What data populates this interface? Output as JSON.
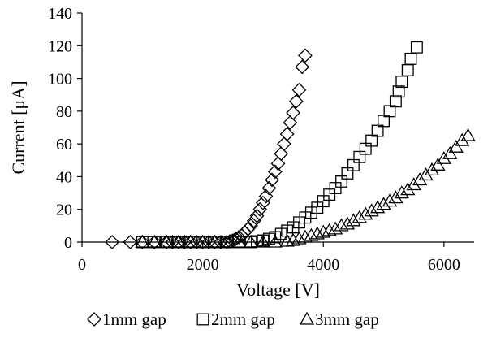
{
  "chart_data": {
    "type": "scatter",
    "xlabel": "Voltage [V]",
    "ylabel": "Current [μA]",
    "xlim": [
      0,
      6500
    ],
    "ylim": [
      0,
      140
    ],
    "xticks": [
      0,
      2000,
      4000,
      6000
    ],
    "yticks": [
      0,
      20,
      40,
      60,
      80,
      100,
      120,
      140
    ],
    "grid": false,
    "legend_position": "bottom",
    "series": [
      {
        "name": "1mm gap",
        "marker": "diamond",
        "points": [
          [
            500,
            0
          ],
          [
            800,
            0
          ],
          [
            1000,
            0
          ],
          [
            1200,
            0
          ],
          [
            1400,
            0
          ],
          [
            1500,
            0
          ],
          [
            1600,
            0
          ],
          [
            1700,
            0
          ],
          [
            1800,
            0
          ],
          [
            1900,
            0
          ],
          [
            2000,
            0
          ],
          [
            2100,
            0
          ],
          [
            2200,
            0
          ],
          [
            2300,
            0
          ],
          [
            2400,
            0
          ],
          [
            2450,
            0.5
          ],
          [
            2500,
            1
          ],
          [
            2550,
            2
          ],
          [
            2600,
            3
          ],
          [
            2650,
            4
          ],
          [
            2700,
            6
          ],
          [
            2750,
            8
          ],
          [
            2800,
            10
          ],
          [
            2850,
            13
          ],
          [
            2900,
            16
          ],
          [
            2950,
            20
          ],
          [
            3000,
            24
          ],
          [
            3050,
            28
          ],
          [
            3100,
            33
          ],
          [
            3150,
            38
          ],
          [
            3200,
            43
          ],
          [
            3250,
            48
          ],
          [
            3300,
            54
          ],
          [
            3350,
            60
          ],
          [
            3400,
            66
          ],
          [
            3450,
            73
          ],
          [
            3500,
            79
          ],
          [
            3550,
            86
          ],
          [
            3600,
            93
          ],
          [
            3650,
            107
          ],
          [
            3700,
            114
          ]
        ]
      },
      {
        "name": "2mm gap",
        "marker": "square",
        "points": [
          [
            1000,
            0
          ],
          [
            1200,
            0
          ],
          [
            1400,
            0
          ],
          [
            1600,
            0
          ],
          [
            1800,
            0
          ],
          [
            2000,
            0
          ],
          [
            2200,
            0
          ],
          [
            2400,
            0
          ],
          [
            2600,
            0
          ],
          [
            2800,
            0
          ],
          [
            2900,
            0.5
          ],
          [
            3000,
            1
          ],
          [
            3100,
            2
          ],
          [
            3200,
            3
          ],
          [
            3300,
            5
          ],
          [
            3400,
            7
          ],
          [
            3500,
            9
          ],
          [
            3600,
            12
          ],
          [
            3700,
            15
          ],
          [
            3800,
            18
          ],
          [
            3900,
            21
          ],
          [
            4000,
            25
          ],
          [
            4100,
            29
          ],
          [
            4200,
            33
          ],
          [
            4300,
            37
          ],
          [
            4400,
            42
          ],
          [
            4500,
            47
          ],
          [
            4600,
            52
          ],
          [
            4700,
            57
          ],
          [
            4800,
            62
          ],
          [
            4900,
            68
          ],
          [
            5000,
            74
          ],
          [
            5100,
            80
          ],
          [
            5200,
            86
          ],
          [
            5250,
            92
          ],
          [
            5300,
            98
          ],
          [
            5400,
            105
          ],
          [
            5450,
            112
          ],
          [
            5550,
            119
          ]
        ]
      },
      {
        "name": "3mm gap",
        "marker": "triangle",
        "points": [
          [
            1000,
            0
          ],
          [
            1200,
            0
          ],
          [
            1400,
            0
          ],
          [
            1600,
            0
          ],
          [
            1800,
            0
          ],
          [
            2000,
            0
          ],
          [
            2200,
            0
          ],
          [
            2400,
            0
          ],
          [
            2600,
            0
          ],
          [
            2800,
            0
          ],
          [
            3000,
            0
          ],
          [
            3200,
            0
          ],
          [
            3400,
            0.5
          ],
          [
            3500,
            1
          ],
          [
            3600,
            2
          ],
          [
            3700,
            3
          ],
          [
            3800,
            4
          ],
          [
            3900,
            5
          ],
          [
            4000,
            6
          ],
          [
            4100,
            7
          ],
          [
            4200,
            8
          ],
          [
            4300,
            10
          ],
          [
            4400,
            11
          ],
          [
            4500,
            13
          ],
          [
            4600,
            15
          ],
          [
            4700,
            17
          ],
          [
            4800,
            19
          ],
          [
            4900,
            21
          ],
          [
            5000,
            23
          ],
          [
            5100,
            25
          ],
          [
            5200,
            27
          ],
          [
            5300,
            30
          ],
          [
            5400,
            32
          ],
          [
            5500,
            35
          ],
          [
            5600,
            38
          ],
          [
            5700,
            41
          ],
          [
            5800,
            44
          ],
          [
            5900,
            47
          ],
          [
            6000,
            51
          ],
          [
            6100,
            54
          ],
          [
            6200,
            58
          ],
          [
            6300,
            62
          ],
          [
            6400,
            65
          ]
        ]
      }
    ]
  }
}
